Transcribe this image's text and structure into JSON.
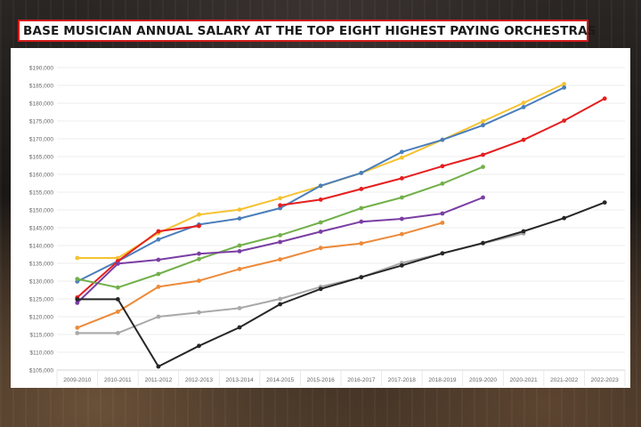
{
  "title": "BASE MUSICIAN ANNUAL SALARY AT THE TOP EIGHT HIGHEST PAYING ORCHESTRAS",
  "chart_data": {
    "type": "line",
    "title": "BASE MUSICIAN ANNUAL SALARY AT THE TOP EIGHT HIGHEST PAYING ORCHESTRAS",
    "xlabel": "",
    "ylabel": "",
    "categories": [
      "2009-2010",
      "2010-2011",
      "2011-2012",
      "2012-2013",
      "2013-2014",
      "2014-2015",
      "2015-2016",
      "2016-2017",
      "2017-2018",
      "2018-2019",
      "2019-2020",
      "2020-2021",
      "2021-2022",
      "2022-2023"
    ],
    "ylim": [
      105000,
      190000
    ],
    "yticks": [
      105000,
      110000,
      115000,
      120000,
      125000,
      130000,
      135000,
      140000,
      145000,
      150000,
      155000,
      160000,
      165000,
      170000,
      175000,
      180000,
      185000,
      190000
    ],
    "ytick_labels": [
      "$105,000",
      "$110,000",
      "$115,000",
      "$120,000",
      "$125,000",
      "$130,000",
      "$135,000",
      "$140,000",
      "$145,000",
      "$150,000",
      "$155,000",
      "$160,000",
      "$165,000",
      "$170,000",
      "$175,000",
      "$180,000",
      "$185,000",
      "$190,000"
    ],
    "grid": "horizontal",
    "legend": "none",
    "series": [
      {
        "color": "#f5c231",
        "values": [
          136500,
          136500,
          143500,
          148700,
          150100,
          153300,
          156700,
          160400,
          164700,
          169700,
          174900,
          180100,
          185400,
          null
        ]
      },
      {
        "color": "#4a7ebb",
        "values": [
          129900,
          135600,
          141700,
          145900,
          147600,
          150500,
          156800,
          160400,
          166300,
          169700,
          173800,
          178900,
          184400,
          null
        ]
      },
      {
        "color": "#e61e1e",
        "values": [
          125400,
          135600,
          144000,
          145500,
          null,
          151300,
          152900,
          155900,
          158900,
          162300,
          165500,
          169700,
          175100,
          181300
        ]
      },
      {
        "color": "#72b04a",
        "values": [
          130600,
          128200,
          132000,
          136200,
          140000,
          142900,
          146500,
          150500,
          153500,
          157400,
          162100,
          null,
          null,
          null
        ]
      },
      {
        "color": "#7a3ea3",
        "values": [
          123900,
          134900,
          136000,
          137700,
          138400,
          141000,
          143900,
          146700,
          147500,
          149000,
          153500,
          null,
          null,
          null
        ]
      },
      {
        "color": "#ec8a3a",
        "values": [
          116900,
          121400,
          128400,
          130100,
          133400,
          136100,
          139300,
          140600,
          143200,
          146400,
          null,
          null,
          null,
          null
        ]
      },
      {
        "color": "#a9a9a9",
        "values": [
          115400,
          115400,
          120000,
          121200,
          122400,
          125000,
          128400,
          131100,
          135100,
          137800,
          140600,
          143400,
          null,
          null
        ]
      },
      {
        "color": "#262626",
        "values": [
          124900,
          124900,
          106000,
          111800,
          117000,
          123500,
          127800,
          131100,
          134400,
          137800,
          140700,
          144000,
          147700,
          152100
        ]
      }
    ]
  }
}
